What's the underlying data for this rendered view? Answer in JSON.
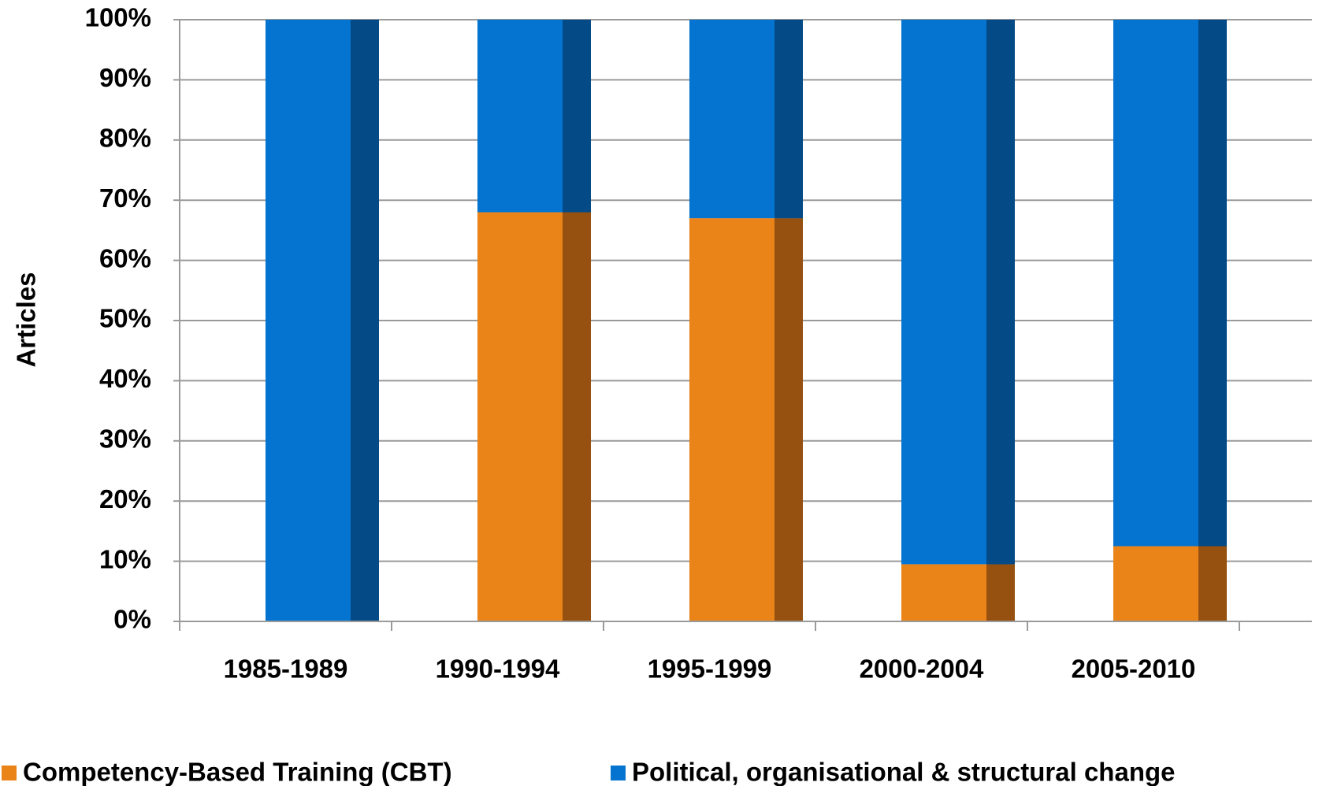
{
  "chart_data": {
    "type": "stacked_bar",
    "y_label": "Articles",
    "categories": [
      "1985-1989",
      "1990-1994",
      "1995-1999",
      "2000-2004",
      "2005-2010"
    ],
    "series": [
      {
        "name": "Competency-Based Training (CBT)",
        "color": "#ea8419",
        "shade": "#96500f",
        "values": [
          0,
          68,
          67,
          9.5,
          12.5
        ]
      },
      {
        "name": "Political, organisational & structural change",
        "color": "#0474d0",
        "shade": "#034a86",
        "values": [
          100,
          32,
          33,
          90.5,
          87.5
        ]
      }
    ],
    "ylim": [
      0,
      100
    ],
    "yticks": [
      {
        "value": 0,
        "label": "0%"
      },
      {
        "value": 10,
        "label": "10%"
      },
      {
        "value": 20,
        "label": "20%"
      },
      {
        "value": 30,
        "label": "30%"
      },
      {
        "value": 40,
        "label": "40%"
      },
      {
        "value": 50,
        "label": "50%"
      },
      {
        "value": 60,
        "label": "60%"
      },
      {
        "value": 70,
        "label": "70%"
      },
      {
        "value": 80,
        "label": "80%"
      },
      {
        "value": 90,
        "label": "90%"
      },
      {
        "value": 100,
        "label": "100%"
      }
    ],
    "grid": true,
    "legend": "bottom"
  }
}
